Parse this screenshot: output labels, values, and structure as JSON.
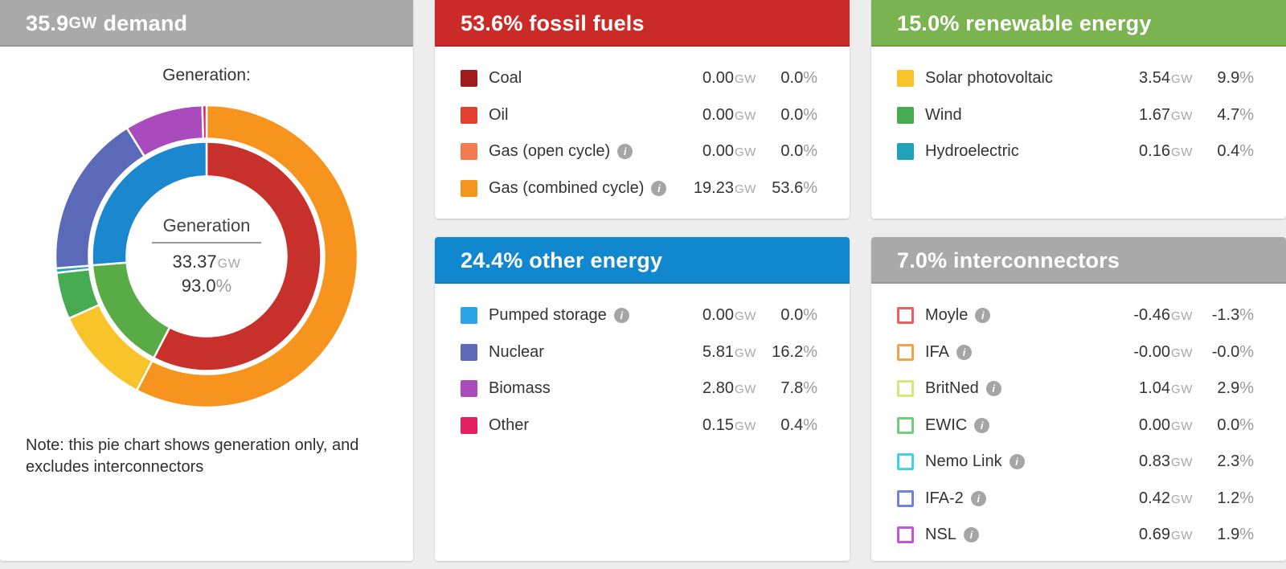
{
  "page_background": "#ededed",
  "icons": {
    "info": "i"
  },
  "demand_panel": {
    "header": {
      "value": "35.9",
      "unit": "GW",
      "text": " demand",
      "color": "#a9a9a9"
    },
    "chart_heading": "Generation:",
    "center": {
      "label": "Generation",
      "value": "33.37",
      "unit": "GW",
      "percent": "93.0",
      "percent_sign": "%"
    },
    "note": "Note: this pie chart shows generation only, and excludes interconnectors"
  },
  "chart_data": {
    "type": "pie",
    "subtype": "double-ring-donut",
    "title": "Generation:",
    "center_label": "Generation",
    "center_total_gw": 33.37,
    "center_percent_of_demand": 93.0,
    "demand_gw": 35.9,
    "note": "Note: this pie chart shows generation only, and excludes interconnectors",
    "start_angle_deg": 0,
    "direction": "clockwise",
    "rings": [
      {
        "name": "categories-inner",
        "unit": "% of demand",
        "segments": [
          {
            "label": "fossil fuels",
            "value": 53.6,
            "color": "#c8302c"
          },
          {
            "label": "renewable energy",
            "value": 15.0,
            "color": "#58ab45"
          },
          {
            "label": "other energy",
            "value": 24.4,
            "color": "#1a87cf"
          }
        ]
      },
      {
        "name": "sources-outer",
        "unit": "GW",
        "segments": [
          {
            "label": "Gas (combined cycle)",
            "value": 19.23,
            "color": "#f6941e"
          },
          {
            "label": "Solar photovoltaic",
            "value": 3.54,
            "color": "#f9c32a"
          },
          {
            "label": "Wind",
            "value": 1.67,
            "color": "#47ab52"
          },
          {
            "label": "Hydroelectric",
            "value": 0.16,
            "color": "#21a3b7"
          },
          {
            "label": "Nuclear",
            "value": 5.81,
            "color": "#5a69b8"
          },
          {
            "label": "Biomass",
            "value": 2.8,
            "color": "#a94abd"
          },
          {
            "label": "Other",
            "value": 0.15,
            "color": "#e32162"
          }
        ]
      }
    ]
  },
  "panels": [
    {
      "id": "fossil-fuels",
      "title": "53.6% fossil fuels",
      "header_color": "#cb2b28",
      "rows": [
        {
          "label": "Coal",
          "color": "#9e1c1c",
          "outline": false,
          "info": false,
          "value": "0.00",
          "unit": "GW",
          "percent": "0.0",
          "percent_sign": "%"
        },
        {
          "label": "Oil",
          "color": "#e2402f",
          "outline": false,
          "info": false,
          "value": "0.00",
          "unit": "GW",
          "percent": "0.0",
          "percent_sign": "%"
        },
        {
          "label": "Gas (open cycle)",
          "color": "#f47a4f",
          "outline": false,
          "info": true,
          "value": "0.00",
          "unit": "GW",
          "percent": "0.0",
          "percent_sign": "%"
        },
        {
          "label": "Gas (combined cycle)",
          "color": "#f6941e",
          "outline": false,
          "info": true,
          "value": "19.23",
          "unit": "GW",
          "percent": "53.6",
          "percent_sign": "%"
        }
      ]
    },
    {
      "id": "other-energy",
      "title": "24.4% other energy",
      "header_color": "#1187cf",
      "rows": [
        {
          "label": "Pumped storage",
          "color": "#2aa3e8",
          "outline": false,
          "info": true,
          "value": "0.00",
          "unit": "GW",
          "percent": "0.0",
          "percent_sign": "%"
        },
        {
          "label": "Nuclear",
          "color": "#5a69b8",
          "outline": false,
          "info": false,
          "value": "5.81",
          "unit": "GW",
          "percent": "16.2",
          "percent_sign": "%"
        },
        {
          "label": "Biomass",
          "color": "#a94abd",
          "outline": false,
          "info": false,
          "value": "2.80",
          "unit": "GW",
          "percent": "7.8",
          "percent_sign": "%"
        },
        {
          "label": "Other",
          "color": "#e32162",
          "outline": false,
          "info": false,
          "value": "0.15",
          "unit": "GW",
          "percent": "0.4",
          "percent_sign": "%"
        }
      ]
    },
    {
      "id": "renewable-energy",
      "title": "15.0% renewable energy",
      "header_color": "#7cb351",
      "rows": [
        {
          "label": "Solar photovoltaic",
          "color": "#f9c32a",
          "outline": false,
          "info": false,
          "value": "3.54",
          "unit": "GW",
          "percent": "9.9",
          "percent_sign": "%"
        },
        {
          "label": "Wind",
          "color": "#47ab52",
          "outline": false,
          "info": false,
          "value": "1.67",
          "unit": "GW",
          "percent": "4.7",
          "percent_sign": "%"
        },
        {
          "label": "Hydroelectric",
          "color": "#21a3b7",
          "outline": false,
          "info": false,
          "value": "0.16",
          "unit": "GW",
          "percent": "0.4",
          "percent_sign": "%"
        }
      ]
    },
    {
      "id": "interconnectors",
      "title": "7.0% interconnectors",
      "header_color": "#a9a9a9",
      "rows": [
        {
          "label": "Moyle",
          "color": "#e66262",
          "outline": true,
          "info": true,
          "value": "-0.46",
          "unit": "GW",
          "percent": "-1.3",
          "percent_sign": "%"
        },
        {
          "label": "IFA",
          "color": "#f0a348",
          "outline": true,
          "info": true,
          "value": "-0.00",
          "unit": "GW",
          "percent": "-0.0",
          "percent_sign": "%"
        },
        {
          "label": "BritNed",
          "color": "#d6e678",
          "outline": true,
          "info": true,
          "value": "1.04",
          "unit": "GW",
          "percent": "2.9",
          "percent_sign": "%"
        },
        {
          "label": "EWIC",
          "color": "#72cc7e",
          "outline": true,
          "info": true,
          "value": "0.00",
          "unit": "GW",
          "percent": "0.0",
          "percent_sign": "%"
        },
        {
          "label": "Nemo Link",
          "color": "#43d2e5",
          "outline": true,
          "info": true,
          "value": "0.83",
          "unit": "GW",
          "percent": "2.3",
          "percent_sign": "%"
        },
        {
          "label": "IFA-2",
          "color": "#7282d8",
          "outline": true,
          "info": true,
          "value": "0.42",
          "unit": "GW",
          "percent": "1.2",
          "percent_sign": "%"
        },
        {
          "label": "NSL",
          "color": "#c157d3",
          "outline": true,
          "info": true,
          "value": "0.69",
          "unit": "GW",
          "percent": "1.9",
          "percent_sign": "%"
        }
      ]
    }
  ]
}
